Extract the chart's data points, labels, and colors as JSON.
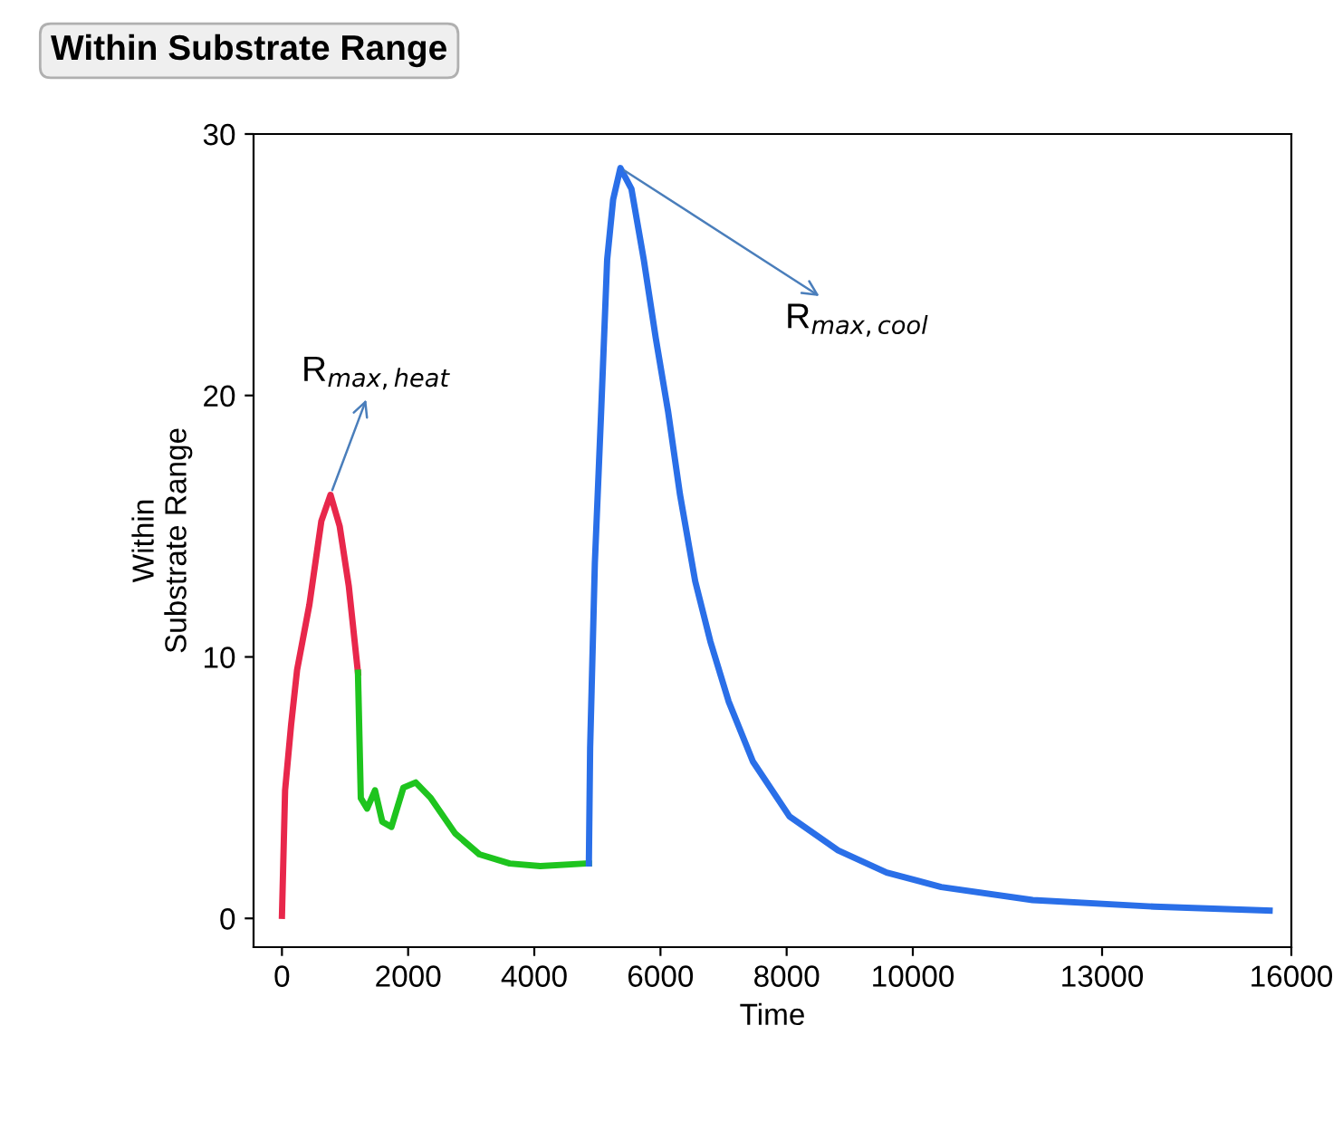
{
  "chart_data": {
    "type": "line",
    "title": "Within Substrate Range",
    "xlabel": "Time",
    "ylabel": "Within\nSubstrate Range",
    "xlim": [
      -450,
      16000
    ],
    "ylim": [
      -1.1,
      30
    ],
    "xticks": [
      0,
      2000,
      4000,
      6000,
      8000,
      10000,
      13000,
      16000
    ],
    "yticks": [
      0,
      10,
      20,
      30
    ],
    "grid": false,
    "legend": false,
    "marker": "none",
    "line_style": "solid",
    "annotations": [
      {
        "text": "R$_{max,heat}$",
        "x": 770,
        "y": 16.2
      },
      {
        "text": "R$_{max,cool}$",
        "x": 5365,
        "y": 28.7
      }
    ],
    "series": [
      {
        "color": "#e8274b",
        "x": [
          0,
          50,
          145,
          240,
          435,
          625,
          770,
          915,
          1060,
          1205
        ],
        "values": [
          0.1,
          4.9,
          7.4,
          9.5,
          12.0,
          15.2,
          16.2,
          15.0,
          12.7,
          9.4
        ]
      },
      {
        "color": "#1ec41e",
        "x": [
          1205,
          1250,
          1350,
          1475,
          1590,
          1735,
          1925,
          2120,
          2360,
          2745,
          3130,
          3610,
          4095,
          4815,
          4865
        ],
        "values": [
          9.4,
          4.6,
          4.2,
          4.9,
          3.7,
          3.5,
          5.0,
          5.2,
          4.6,
          3.25,
          2.45,
          2.1,
          2.0,
          2.1,
          2.1
        ]
      },
      {
        "color": "#2a6fe8",
        "x": [
          4865,
          4885,
          4960,
          5060,
          5155,
          5250,
          5365,
          5540,
          5735,
          5925,
          6120,
          6310,
          6550,
          6790,
          7080,
          7465,
          8045,
          8815,
          9585,
          10450,
          11900,
          13825,
          15655
        ],
        "values": [
          2.1,
          6.5,
          13.6,
          19.4,
          25.2,
          27.5,
          28.7,
          27.9,
          25.2,
          22.2,
          19.4,
          16.2,
          12.9,
          10.6,
          8.3,
          6.0,
          3.9,
          2.6,
          1.75,
          1.2,
          0.7,
          0.45,
          0.3
        ]
      }
    ]
  }
}
